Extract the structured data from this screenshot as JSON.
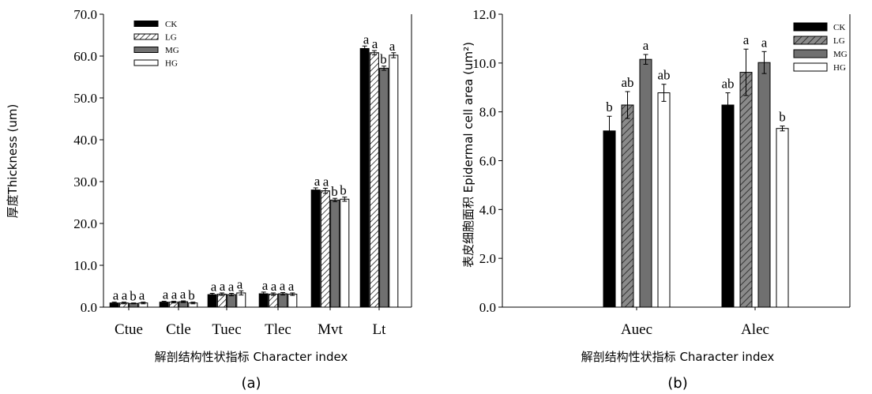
{
  "chart_data": [
    {
      "type": "bar",
      "panel_label": "(a)",
      "xlabel": "解剖结构性状指标 Character index",
      "ylabel": "厚度Thickness (um)",
      "ylim": [
        0,
        70
      ],
      "yticks": [
        0,
        10,
        20,
        30,
        40,
        50,
        60,
        70
      ],
      "ytick_labels": [
        "0.0",
        "10.0",
        "20.0",
        "30.0",
        "40.0",
        "50.0",
        "60.0",
        "70.0"
      ],
      "categories": [
        "Ctue",
        "Ctle",
        "Tuec",
        "Tlec",
        "Mvt",
        "Lt"
      ],
      "legend_position": "top-left",
      "series": [
        {
          "name": "CK",
          "fill": "solid",
          "color": "#000000",
          "values": [
            1.0,
            1.2,
            3.0,
            3.2,
            28.0,
            61.8
          ],
          "errors": [
            0.2,
            0.2,
            0.3,
            0.4,
            0.5,
            0.6
          ],
          "letters": [
            "a",
            "a",
            "a",
            "a",
            "a",
            "a"
          ]
        },
        {
          "name": "LG",
          "fill": "hatch",
          "color": "#ffffff",
          "values": [
            1.0,
            1.2,
            3.1,
            3.1,
            27.8,
            60.8
          ],
          "errors": [
            0.2,
            0.2,
            0.3,
            0.3,
            0.6,
            0.5
          ],
          "letters": [
            "a",
            "a",
            "a",
            "a",
            "a",
            "a"
          ]
        },
        {
          "name": "MG",
          "fill": "solid",
          "color": "#707070",
          "values": [
            0.9,
            1.3,
            3.0,
            3.2,
            25.6,
            57.1
          ],
          "errors": [
            0.1,
            0.2,
            0.3,
            0.3,
            0.4,
            0.5
          ],
          "letters": [
            "b",
            "a",
            "a",
            "a",
            "b",
            "b"
          ]
        },
        {
          "name": "HG",
          "fill": "solid",
          "color": "#ffffff",
          "values": [
            1.0,
            1.0,
            3.4,
            3.1,
            25.8,
            60.2
          ],
          "errors": [
            0.2,
            0.2,
            0.5,
            0.3,
            0.5,
            0.6
          ],
          "letters": [
            "a",
            "b",
            "a",
            "a",
            "b",
            "a"
          ]
        }
      ]
    },
    {
      "type": "bar",
      "panel_label": "(b)",
      "xlabel": "解剖结构性状指标 Character index",
      "ylabel": "表皮细胞面积  Epidermal cell area (um²)",
      "ylim": [
        0,
        12
      ],
      "yticks": [
        0,
        2,
        4,
        6,
        8,
        10,
        12
      ],
      "ytick_labels": [
        "0.0",
        "2.0",
        "4.0",
        "6.0",
        "8.0",
        "10.0",
        "12.0"
      ],
      "categories": [
        "Auec",
        "Alec"
      ],
      "legend_position": "top-right",
      "series": [
        {
          "name": "CK",
          "fill": "solid",
          "color": "#000000",
          "values": [
            7.22,
            8.28
          ],
          "errors": [
            0.6,
            0.5
          ],
          "letters": [
            "b",
            "ab"
          ]
        },
        {
          "name": "LG",
          "fill": "hatch",
          "color": "#808080",
          "values": [
            8.28,
            9.62
          ],
          "errors": [
            0.55,
            0.95
          ],
          "letters": [
            "ab",
            "a"
          ]
        },
        {
          "name": "MG",
          "fill": "solid",
          "color": "#707070",
          "values": [
            10.15,
            10.02
          ],
          "errors": [
            0.2,
            0.45
          ],
          "letters": [
            "a",
            "a"
          ]
        },
        {
          "name": "HG",
          "fill": "solid",
          "color": "#ffffff",
          "values": [
            8.78,
            7.32
          ],
          "errors": [
            0.35,
            0.1
          ],
          "letters": [
            "ab",
            "b"
          ]
        }
      ]
    }
  ]
}
